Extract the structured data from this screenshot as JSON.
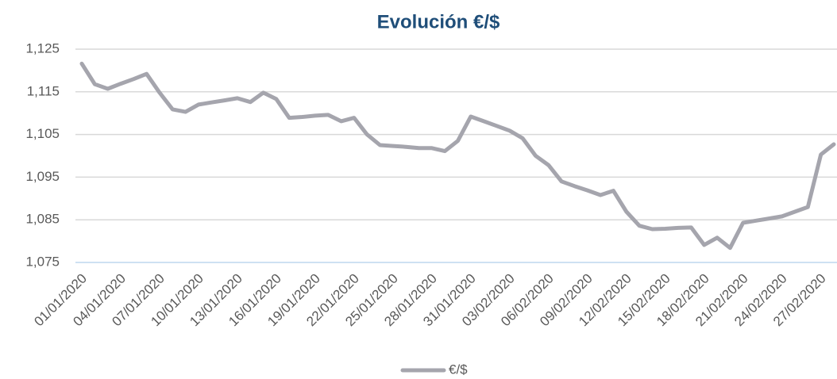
{
  "chart_data": {
    "type": "line",
    "title": "Evolución €/$",
    "categories": [
      "01/01/2020",
      null,
      null,
      "04/01/2020",
      null,
      null,
      "07/01/2020",
      null,
      null,
      "10/01/2020",
      null,
      null,
      "13/01/2020",
      null,
      null,
      "16/01/2020",
      null,
      null,
      "19/01/2020",
      null,
      null,
      "22/01/2020",
      null,
      null,
      "25/01/2020",
      null,
      null,
      "28/01/2020",
      null,
      null,
      "31/01/2020",
      null,
      null,
      "03/02/2020",
      null,
      null,
      "06/02/2020",
      null,
      null,
      "09/02/2020",
      null,
      null,
      "12/02/2020",
      null,
      null,
      "15/02/2020",
      null,
      null,
      "18/02/2020",
      null,
      null,
      "21/02/2020",
      null,
      null,
      "24/02/2020",
      null,
      null,
      "27/02/2020",
      null
    ],
    "series": [
      {
        "name": "€/$",
        "color": "#a5a5ad",
        "values": [
          1.1216,
          1.1168,
          1.1157,
          1.1169,
          1.118,
          1.1192,
          1.1148,
          1.1109,
          1.1103,
          1.112,
          1.1125,
          1.113,
          1.1135,
          1.1126,
          1.1148,
          1.1133,
          1.1089,
          1.1091,
          1.1094,
          1.1096,
          1.1081,
          1.1089,
          1.105,
          1.1025,
          1.1023,
          1.1021,
          1.1018,
          1.1018,
          1.1011,
          1.1035,
          1.1092,
          1.1081,
          1.107,
          1.1059,
          1.1041,
          1.1,
          1.0978,
          1.094,
          1.0929,
          1.0919,
          1.0908,
          1.0918,
          1.0869,
          1.0836,
          1.0828,
          1.0829,
          1.0831,
          1.0832,
          1.0791,
          1.0808,
          1.0784,
          1.0843,
          1.0848,
          1.0853,
          1.0858,
          1.0869,
          1.088,
          1.1003,
          1.1027
        ]
      }
    ],
    "ylim": [
      1.075,
      1.125
    ],
    "yticks": [
      {
        "value": 1.075,
        "label": "1,075"
      },
      {
        "value": 1.085,
        "label": "1,085"
      },
      {
        "value": 1.095,
        "label": "1,095"
      },
      {
        "value": 1.105,
        "label": "1,105"
      },
      {
        "value": 1.115,
        "label": "1,115"
      },
      {
        "value": 1.125,
        "label": "1,125"
      }
    ],
    "grid": true,
    "legend": "bottom"
  }
}
